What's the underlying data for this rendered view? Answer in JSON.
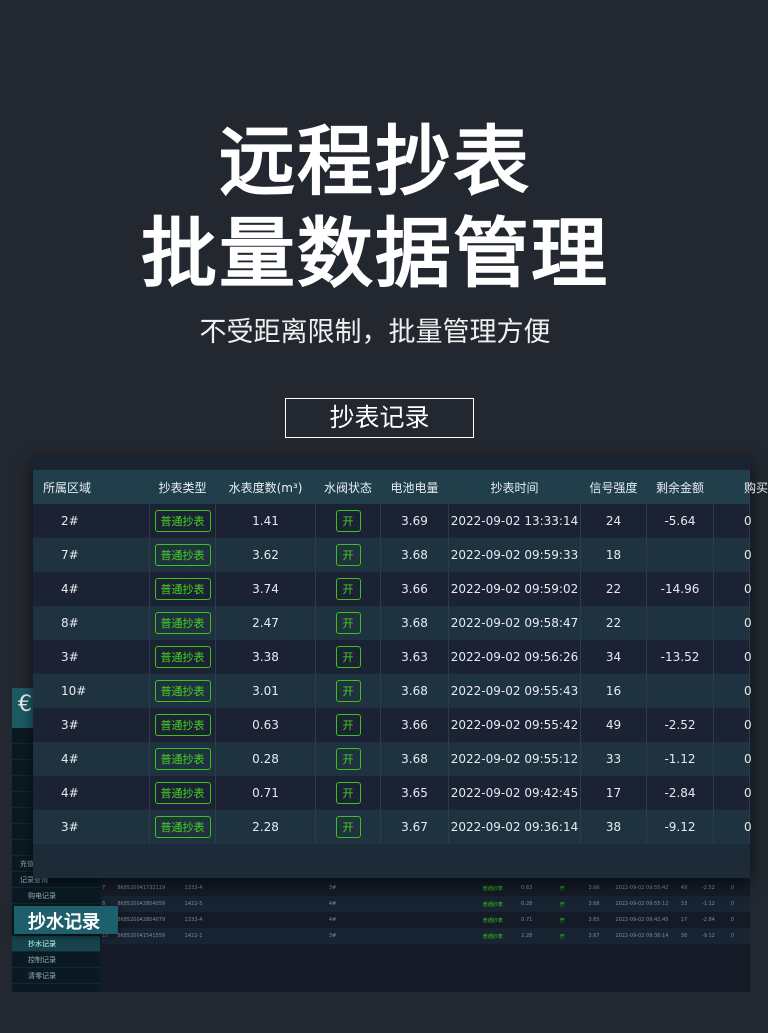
{
  "hero": {
    "line1": "远程抄表",
    "line2": "批量数据管理",
    "subtitle": "不受距离限制，批量管理方便",
    "section": "抄表记录"
  },
  "colors": {
    "accent_green": "#47d21f",
    "header_bg": "#213f4b",
    "page_bg": "#222730"
  },
  "table": {
    "headers": [
      "所属区域",
      "抄表类型",
      "水表度数(m³)",
      "水阀状态",
      "电池电量",
      "抄表时间",
      "信号强度",
      "剩余金额",
      "购买"
    ],
    "rows": [
      {
        "area": "2#",
        "type": "普通抄表",
        "reading": "1.41",
        "valve": "开",
        "battery": "3.69",
        "time": "2022-09-02 13:33:14",
        "signal": "24",
        "balance": "-5.64",
        "buy": "0"
      },
      {
        "area": "7#",
        "type": "普通抄表",
        "reading": "3.62",
        "valve": "开",
        "battery": "3.68",
        "time": "2022-09-02 09:59:33",
        "signal": "18",
        "balance": "",
        "buy": "0"
      },
      {
        "area": "4#",
        "type": "普通抄表",
        "reading": "3.74",
        "valve": "开",
        "battery": "3.66",
        "time": "2022-09-02 09:59:02",
        "signal": "22",
        "balance": "-14.96",
        "buy": "0"
      },
      {
        "area": "8#",
        "type": "普通抄表",
        "reading": "2.47",
        "valve": "开",
        "battery": "3.68",
        "time": "2022-09-02 09:58:47",
        "signal": "22",
        "balance": "",
        "buy": "0"
      },
      {
        "area": "3#",
        "type": "普通抄表",
        "reading": "3.38",
        "valve": "开",
        "battery": "3.63",
        "time": "2022-09-02 09:56:26",
        "signal": "34",
        "balance": "-13.52",
        "buy": "0"
      },
      {
        "area": "10#",
        "type": "普通抄表",
        "reading": "3.01",
        "valve": "开",
        "battery": "3.68",
        "time": "2022-09-02 09:55:43",
        "signal": "16",
        "balance": "",
        "buy": "0"
      },
      {
        "area": "3#",
        "type": "普通抄表",
        "reading": "0.63",
        "valve": "开",
        "battery": "3.66",
        "time": "2022-09-02 09:55:42",
        "signal": "49",
        "balance": "-2.52",
        "buy": "0"
      },
      {
        "area": "4#",
        "type": "普通抄表",
        "reading": "0.28",
        "valve": "开",
        "battery": "3.68",
        "time": "2022-09-02 09:55:12",
        "signal": "33",
        "balance": "-1.12",
        "buy": "0"
      },
      {
        "area": "4#",
        "type": "普通抄表",
        "reading": "0.71",
        "valve": "开",
        "battery": "3.65",
        "time": "2022-09-02 09:42:45",
        "signal": "17",
        "balance": "-2.84",
        "buy": "0"
      },
      {
        "area": "3#",
        "type": "普通抄表",
        "reading": "2.28",
        "valve": "开",
        "battery": "3.67",
        "time": "2022-09-02 09:36:14",
        "signal": "38",
        "balance": "-9.12",
        "buy": "0"
      }
    ]
  },
  "background_app": {
    "logo": "€",
    "menu": [
      "充值管理",
      "记录查询",
      "购电记录",
      "抄水记录",
      "控制记录",
      "清零记录"
    ],
    "rows": [
      {
        "no": "7",
        "id": "868520041732119",
        "code": "1333-4",
        "area": "3#",
        "type": "普通抄表",
        "reading": "0.63",
        "valve": "开",
        "battery": "3.66",
        "time": "2022-09-02 09:55:42",
        "signal": "49",
        "balance": "-2.52",
        "buy": "0"
      },
      {
        "no": "8",
        "id": "868520042804059",
        "code": "1422-5",
        "area": "4#",
        "type": "普通抄表",
        "reading": "0.28",
        "valve": "开",
        "battery": "3.68",
        "time": "2022-09-02 09:55:12",
        "signal": "33",
        "balance": "-1.12",
        "buy": "0"
      },
      {
        "no": "9",
        "id": "868520042804079",
        "code": "1333-4",
        "area": "4#",
        "type": "普通抄表",
        "reading": "0.71",
        "valve": "开",
        "battery": "3.65",
        "time": "2022-09-02 09:42:45",
        "signal": "17",
        "balance": "-2.84",
        "buy": "0"
      },
      {
        "no": "10",
        "id": "868520041541559",
        "code": "1422-1",
        "area": "3#",
        "type": "普通抄表",
        "reading": "2.28",
        "valve": "开",
        "battery": "3.67",
        "time": "2022-09-02 09:36:14",
        "signal": "38",
        "balance": "-9.12",
        "buy": "0"
      }
    ]
  },
  "tag": "抄水记录"
}
